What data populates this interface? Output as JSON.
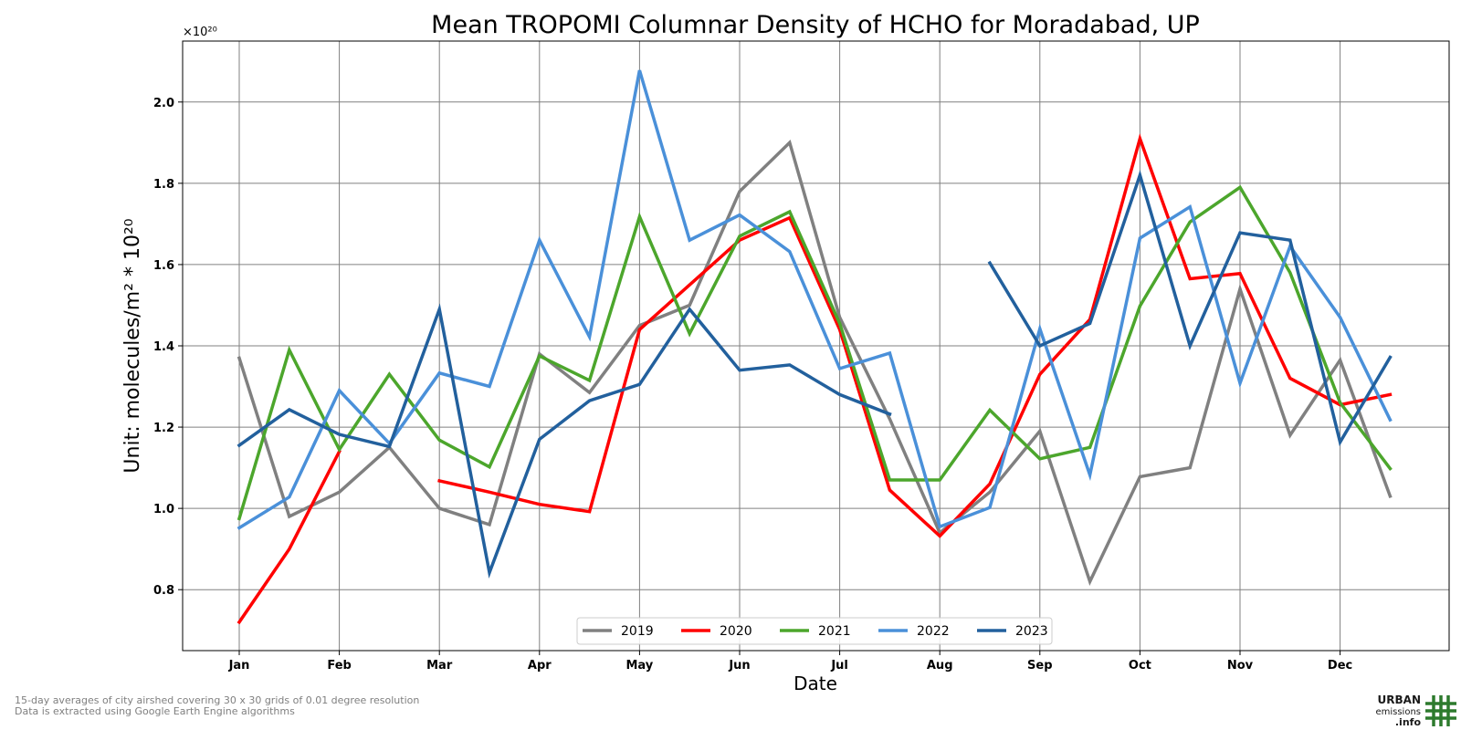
{
  "colors": {
    "2019": "#808080",
    "2020": "#ff0000",
    "2021": "#4ca62c",
    "2022": "#4a90d9",
    "2023": "#22609d",
    "grid": "#808080",
    "logo_green": "#2d7a2d"
  },
  "footnotes": {
    "line1": "15-day averages of city airshed covering 30 x 30 grids of 0.01 degree resolution",
    "line2": "Data is extracted using Google Earth Engine algorithms"
  },
  "logo": {
    "line1": "URBAN",
    "line2": "emissions",
    "line3": ".info",
    "icon": "grid-icon"
  },
  "chart_data": {
    "type": "line",
    "title": "Mean TROPOMI Columnar Density of HCHO for Moradabad, UP",
    "xlabel": "Date",
    "ylabel": "Unit: molecules/m² * 10²⁰",
    "offset_label": "×10²⁰",
    "x_tick_labels": [
      "Jan",
      "Feb",
      "Mar",
      "Apr",
      "May",
      "Jun",
      "Jul",
      "Aug",
      "Sep",
      "Oct",
      "Nov",
      "Dec"
    ],
    "x_points": [
      "Jan 1",
      "Jan 16",
      "Feb 1",
      "Feb 16",
      "Mar 1",
      "Mar 16",
      "Apr 1",
      "Apr 16",
      "May 1",
      "May 16",
      "Jun 1",
      "Jun 16",
      "Jul 1",
      "Jul 16",
      "Aug 1",
      "Aug 16",
      "Sep 1",
      "Sep 16",
      "Oct 1",
      "Oct 16",
      "Nov 1",
      "Nov 16",
      "Dec 1",
      "Dec 16"
    ],
    "y_ticks": [
      0.8,
      1.0,
      1.2,
      1.4,
      1.6,
      1.8,
      2.0
    ],
    "ylim": [
      0.65,
      2.15
    ],
    "grid": true,
    "legend_position": "bottom-center",
    "series": [
      {
        "name": "2019",
        "values": [
          1.37,
          0.98,
          1.04,
          1.15,
          1.0,
          0.96,
          1.38,
          1.285,
          1.45,
          1.5,
          1.78,
          1.9,
          1.47,
          1.22,
          0.94,
          1.04,
          1.19,
          0.82,
          1.078,
          1.1,
          1.54,
          1.18,
          1.365,
          1.03
        ]
      },
      {
        "name": "2020",
        "values": [
          0.72,
          0.9,
          1.14,
          null,
          1.068,
          1.04,
          1.01,
          0.992,
          1.44,
          1.55,
          1.66,
          1.715,
          1.44,
          1.045,
          0.932,
          1.06,
          1.33,
          1.465,
          1.91,
          1.565,
          1.578,
          1.32,
          1.255,
          1.28
        ]
      },
      {
        "name": "2021",
        "values": [
          0.975,
          1.39,
          1.145,
          1.33,
          1.168,
          1.102,
          1.375,
          1.315,
          1.718,
          1.43,
          1.67,
          1.73,
          1.455,
          1.07,
          1.07,
          1.242,
          1.122,
          1.15,
          1.498,
          1.705,
          1.79,
          1.58,
          1.26,
          1.098
        ]
      },
      {
        "name": "2022",
        "values": [
          0.952,
          1.028,
          1.29,
          1.16,
          1.333,
          1.3,
          1.66,
          1.422,
          2.078,
          1.66,
          1.722,
          1.632,
          1.344,
          1.382,
          0.955,
          1.002,
          1.442,
          1.082,
          1.665,
          1.742,
          1.308,
          1.645,
          1.47,
          1.218
        ]
      },
      {
        "name": "2023",
        "values": [
          1.155,
          1.243,
          1.182,
          1.152,
          1.49,
          0.842,
          1.17,
          1.265,
          1.305,
          1.49,
          1.34,
          1.353,
          1.28,
          1.232,
          null,
          1.604,
          1.4,
          1.455,
          1.82,
          1.4,
          1.678,
          1.66,
          1.163,
          1.372
        ]
      }
    ]
  }
}
